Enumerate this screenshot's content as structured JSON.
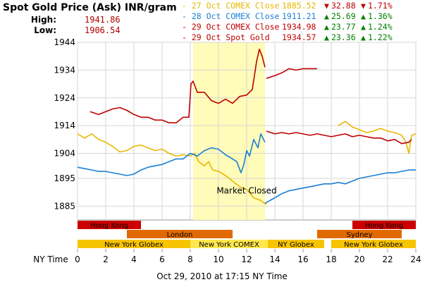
{
  "header": {
    "title": "Spot Gold Price (Ask) INR/gram",
    "high_label": "High:",
    "high_value": "1941.86",
    "low_label": "Low:",
    "low_value": "1906.54"
  },
  "legend": [
    {
      "label": "- 27 Oct COMEX Close",
      "price": "1885.52",
      "arrow": "▼",
      "change": "32.88",
      "pct_arrow": "▼",
      "pct": "1.71%",
      "color": "#e8b800",
      "change_color": "#c00000"
    },
    {
      "label": "- 28 Oct COMEX Close",
      "price": "1911.21",
      "arrow": "▲",
      "change": "25.69",
      "pct_arrow": "▲",
      "pct": "1.36%",
      "color": "#1a7fd4",
      "change_color": "#008000"
    },
    {
      "label": "- 29 Oct COMEX Close",
      "price": "1934.98",
      "arrow": "▲",
      "change": "23.77",
      "pct_arrow": "▲",
      "pct": "1.24%",
      "color": "#c00000",
      "change_color": "#008000"
    },
    {
      "label": "- 29 Oct Spot Gold",
      "price": "1934.57",
      "arrow": "▲",
      "change": "23.36",
      "pct_arrow": "▲",
      "pct": "1.22%",
      "color": "#c00000",
      "change_color": "#008000"
    }
  ],
  "chart_data": {
    "type": "line",
    "xlabel": "NY Time",
    "xlim": [
      0,
      24
    ],
    "ylim": [
      1880,
      1944
    ],
    "x_ticks": [
      0,
      2,
      4,
      6,
      8,
      10,
      12,
      14,
      16,
      18,
      20,
      22,
      24
    ],
    "y_ticks": [
      1885,
      1895,
      1904,
      1914,
      1924,
      1934,
      1944
    ],
    "grid": true,
    "highlight": {
      "from": 8.2,
      "to": 13.3,
      "color": "#fffbb8"
    },
    "annotation": {
      "text": "Market Closed",
      "x": 12.0,
      "y": 1889.5
    },
    "series": [
      {
        "color": "#e8b800",
        "values": [
          [
            0,
            1911
          ],
          [
            0.5,
            1909.5
          ],
          [
            1,
            1911
          ],
          [
            1.5,
            1909
          ],
          [
            2,
            1908
          ],
          [
            2.5,
            1906.5
          ],
          [
            3,
            1904.5
          ],
          [
            3.5,
            1905
          ],
          [
            4,
            1906.5
          ],
          [
            4.5,
            1907
          ],
          [
            5,
            1906
          ],
          [
            5.5,
            1905
          ],
          [
            6,
            1905.5
          ],
          [
            6.5,
            1904
          ],
          [
            7,
            1903
          ],
          [
            7.5,
            1903.5
          ],
          [
            8,
            1903
          ],
          [
            8.3,
            1904
          ],
          [
            8.6,
            1901
          ],
          [
            9,
            1899.5
          ],
          [
            9.3,
            1901
          ],
          [
            9.6,
            1898
          ],
          [
            10,
            1897.5
          ],
          [
            10.5,
            1896
          ],
          [
            11,
            1894
          ],
          [
            11.5,
            1892
          ],
          [
            12,
            1891
          ],
          [
            12.5,
            1888
          ],
          [
            13,
            1887
          ],
          [
            13.4,
            1885.5
          ]
        ]
      },
      {
        "color": "#e8b800",
        "values": [
          [
            18.5,
            1914
          ],
          [
            19,
            1915.5
          ],
          [
            19.5,
            1913.5
          ],
          [
            20,
            1912.5
          ],
          [
            20.5,
            1911.5
          ],
          [
            21,
            1912
          ],
          [
            21.5,
            1913
          ],
          [
            22,
            1912
          ],
          [
            22.5,
            1911.5
          ],
          [
            23,
            1910.5
          ],
          [
            23.3,
            1908
          ],
          [
            23.5,
            1904
          ],
          [
            23.7,
            1910.5
          ],
          [
            24,
            1911
          ]
        ]
      },
      {
        "color": "#1a7fd4",
        "values": [
          [
            0,
            1899
          ],
          [
            0.5,
            1898.5
          ],
          [
            1,
            1898
          ],
          [
            1.5,
            1897.5
          ],
          [
            2,
            1897.5
          ],
          [
            2.5,
            1897
          ],
          [
            3,
            1896.5
          ],
          [
            3.5,
            1896
          ],
          [
            4,
            1896.5
          ],
          [
            4.5,
            1898
          ],
          [
            5,
            1899
          ],
          [
            5.5,
            1899.5
          ],
          [
            6,
            1900
          ],
          [
            6.5,
            1901
          ],
          [
            7,
            1902
          ],
          [
            7.5,
            1902
          ],
          [
            8,
            1904
          ],
          [
            8.5,
            1903
          ],
          [
            9,
            1905
          ],
          [
            9.5,
            1906
          ],
          [
            10,
            1905.5
          ],
          [
            10.5,
            1903.5
          ],
          [
            11,
            1902
          ],
          [
            11.3,
            1901
          ],
          [
            11.6,
            1897
          ],
          [
            11.8,
            1900
          ],
          [
            12,
            1905
          ],
          [
            12.2,
            1903
          ],
          [
            12.5,
            1909
          ],
          [
            12.8,
            1906
          ],
          [
            13,
            1911
          ],
          [
            13.3,
            1908
          ]
        ]
      },
      {
        "color": "#1a7fd4",
        "values": [
          [
            13.3,
            1886
          ],
          [
            14,
            1888
          ],
          [
            14.5,
            1889.5
          ],
          [
            15,
            1890.5
          ],
          [
            15.5,
            1891
          ],
          [
            16,
            1891.5
          ],
          [
            16.5,
            1892
          ],
          [
            17,
            1892.5
          ],
          [
            17.5,
            1893
          ],
          [
            18,
            1893
          ],
          [
            18.5,
            1893.5
          ],
          [
            19,
            1893
          ],
          [
            19.5,
            1894
          ],
          [
            20,
            1895
          ],
          [
            20.5,
            1895.5
          ],
          [
            21,
            1896
          ],
          [
            21.5,
            1896.5
          ],
          [
            22,
            1897
          ],
          [
            22.5,
            1897
          ],
          [
            23,
            1897.5
          ],
          [
            23.5,
            1898
          ],
          [
            24,
            1898
          ]
        ]
      },
      {
        "color": "#c00000",
        "values": [
          [
            0.9,
            1919
          ],
          [
            1.2,
            1918.5
          ],
          [
            1.5,
            1918
          ],
          [
            2,
            1919
          ],
          [
            2.5,
            1920
          ],
          [
            3,
            1920.5
          ],
          [
            3.5,
            1919.5
          ],
          [
            4,
            1918
          ],
          [
            4.5,
            1917
          ],
          [
            5,
            1917
          ],
          [
            5.5,
            1916
          ],
          [
            6,
            1916
          ],
          [
            6.5,
            1915
          ],
          [
            7,
            1915
          ],
          [
            7.5,
            1917
          ],
          [
            7.9,
            1917
          ],
          [
            8.05,
            1929
          ],
          [
            8.2,
            1930
          ],
          [
            8.5,
            1926
          ],
          [
            9,
            1926
          ],
          [
            9.5,
            1923
          ],
          [
            10,
            1922
          ],
          [
            10.5,
            1923.5
          ],
          [
            11,
            1922
          ],
          [
            11.5,
            1924.5
          ],
          [
            12,
            1925
          ],
          [
            12.4,
            1927
          ],
          [
            12.7,
            1937
          ],
          [
            12.9,
            1941.5
          ],
          [
            13.1,
            1939
          ],
          [
            13.3,
            1935
          ]
        ]
      },
      {
        "color": "#c00000",
        "values": [
          [
            13.4,
            1931
          ],
          [
            14,
            1932
          ],
          [
            14.5,
            1933
          ],
          [
            15,
            1934.5
          ],
          [
            15.5,
            1934
          ],
          [
            16,
            1934.5
          ],
          [
            16.5,
            1934.5
          ],
          [
            17,
            1934.5
          ]
        ]
      },
      {
        "color": "#c00000",
        "values": [
          [
            13.4,
            1912
          ],
          [
            14,
            1911
          ],
          [
            14.5,
            1911.5
          ],
          [
            15,
            1911
          ],
          [
            15.5,
            1911.5
          ],
          [
            16,
            1911
          ],
          [
            16.5,
            1910.5
          ],
          [
            17,
            1911
          ],
          [
            17.5,
            1910.5
          ],
          [
            18,
            1910
          ],
          [
            18.5,
            1910.5
          ],
          [
            19,
            1911
          ],
          [
            19.5,
            1910
          ],
          [
            20,
            1910.5
          ],
          [
            20.5,
            1910
          ],
          [
            21,
            1909.5
          ],
          [
            21.5,
            1909.5
          ],
          [
            22,
            1908.5
          ],
          [
            22.5,
            1909
          ],
          [
            23,
            1907.5
          ],
          [
            23.5,
            1908
          ],
          [
            23.7,
            1909
          ]
        ]
      }
    ],
    "sessions": [
      {
        "label": "Hong Kong",
        "from": 0,
        "to": 4.5,
        "row": 0,
        "color": "#cc0000"
      },
      {
        "label": "Hong Kong",
        "from": 19.5,
        "to": 24,
        "row": 0,
        "color": "#cc0000"
      },
      {
        "label": "London",
        "from": 3.5,
        "to": 11,
        "row": 1,
        "color": "#e06a00"
      },
      {
        "label": "Sydney",
        "from": 17,
        "to": 23,
        "row": 1,
        "color": "#e06a00"
      },
      {
        "label": "New York Globex",
        "from": 0,
        "to": 8,
        "row": 2,
        "color": "#f7c400"
      },
      {
        "label": "New York COMEX",
        "from": 8,
        "to": 13.5,
        "row": 2,
        "color": "#ffe74d"
      },
      {
        "label": "NY Globex",
        "from": 13.5,
        "to": 17.5,
        "row": 2,
        "color": "#f7c400"
      },
      {
        "label": "New York Globex",
        "from": 18,
        "to": 24,
        "row": 2,
        "color": "#f7c400"
      }
    ]
  },
  "footer": {
    "timestamp": "Oct 29, 2010 at 17:15 NY Time"
  }
}
